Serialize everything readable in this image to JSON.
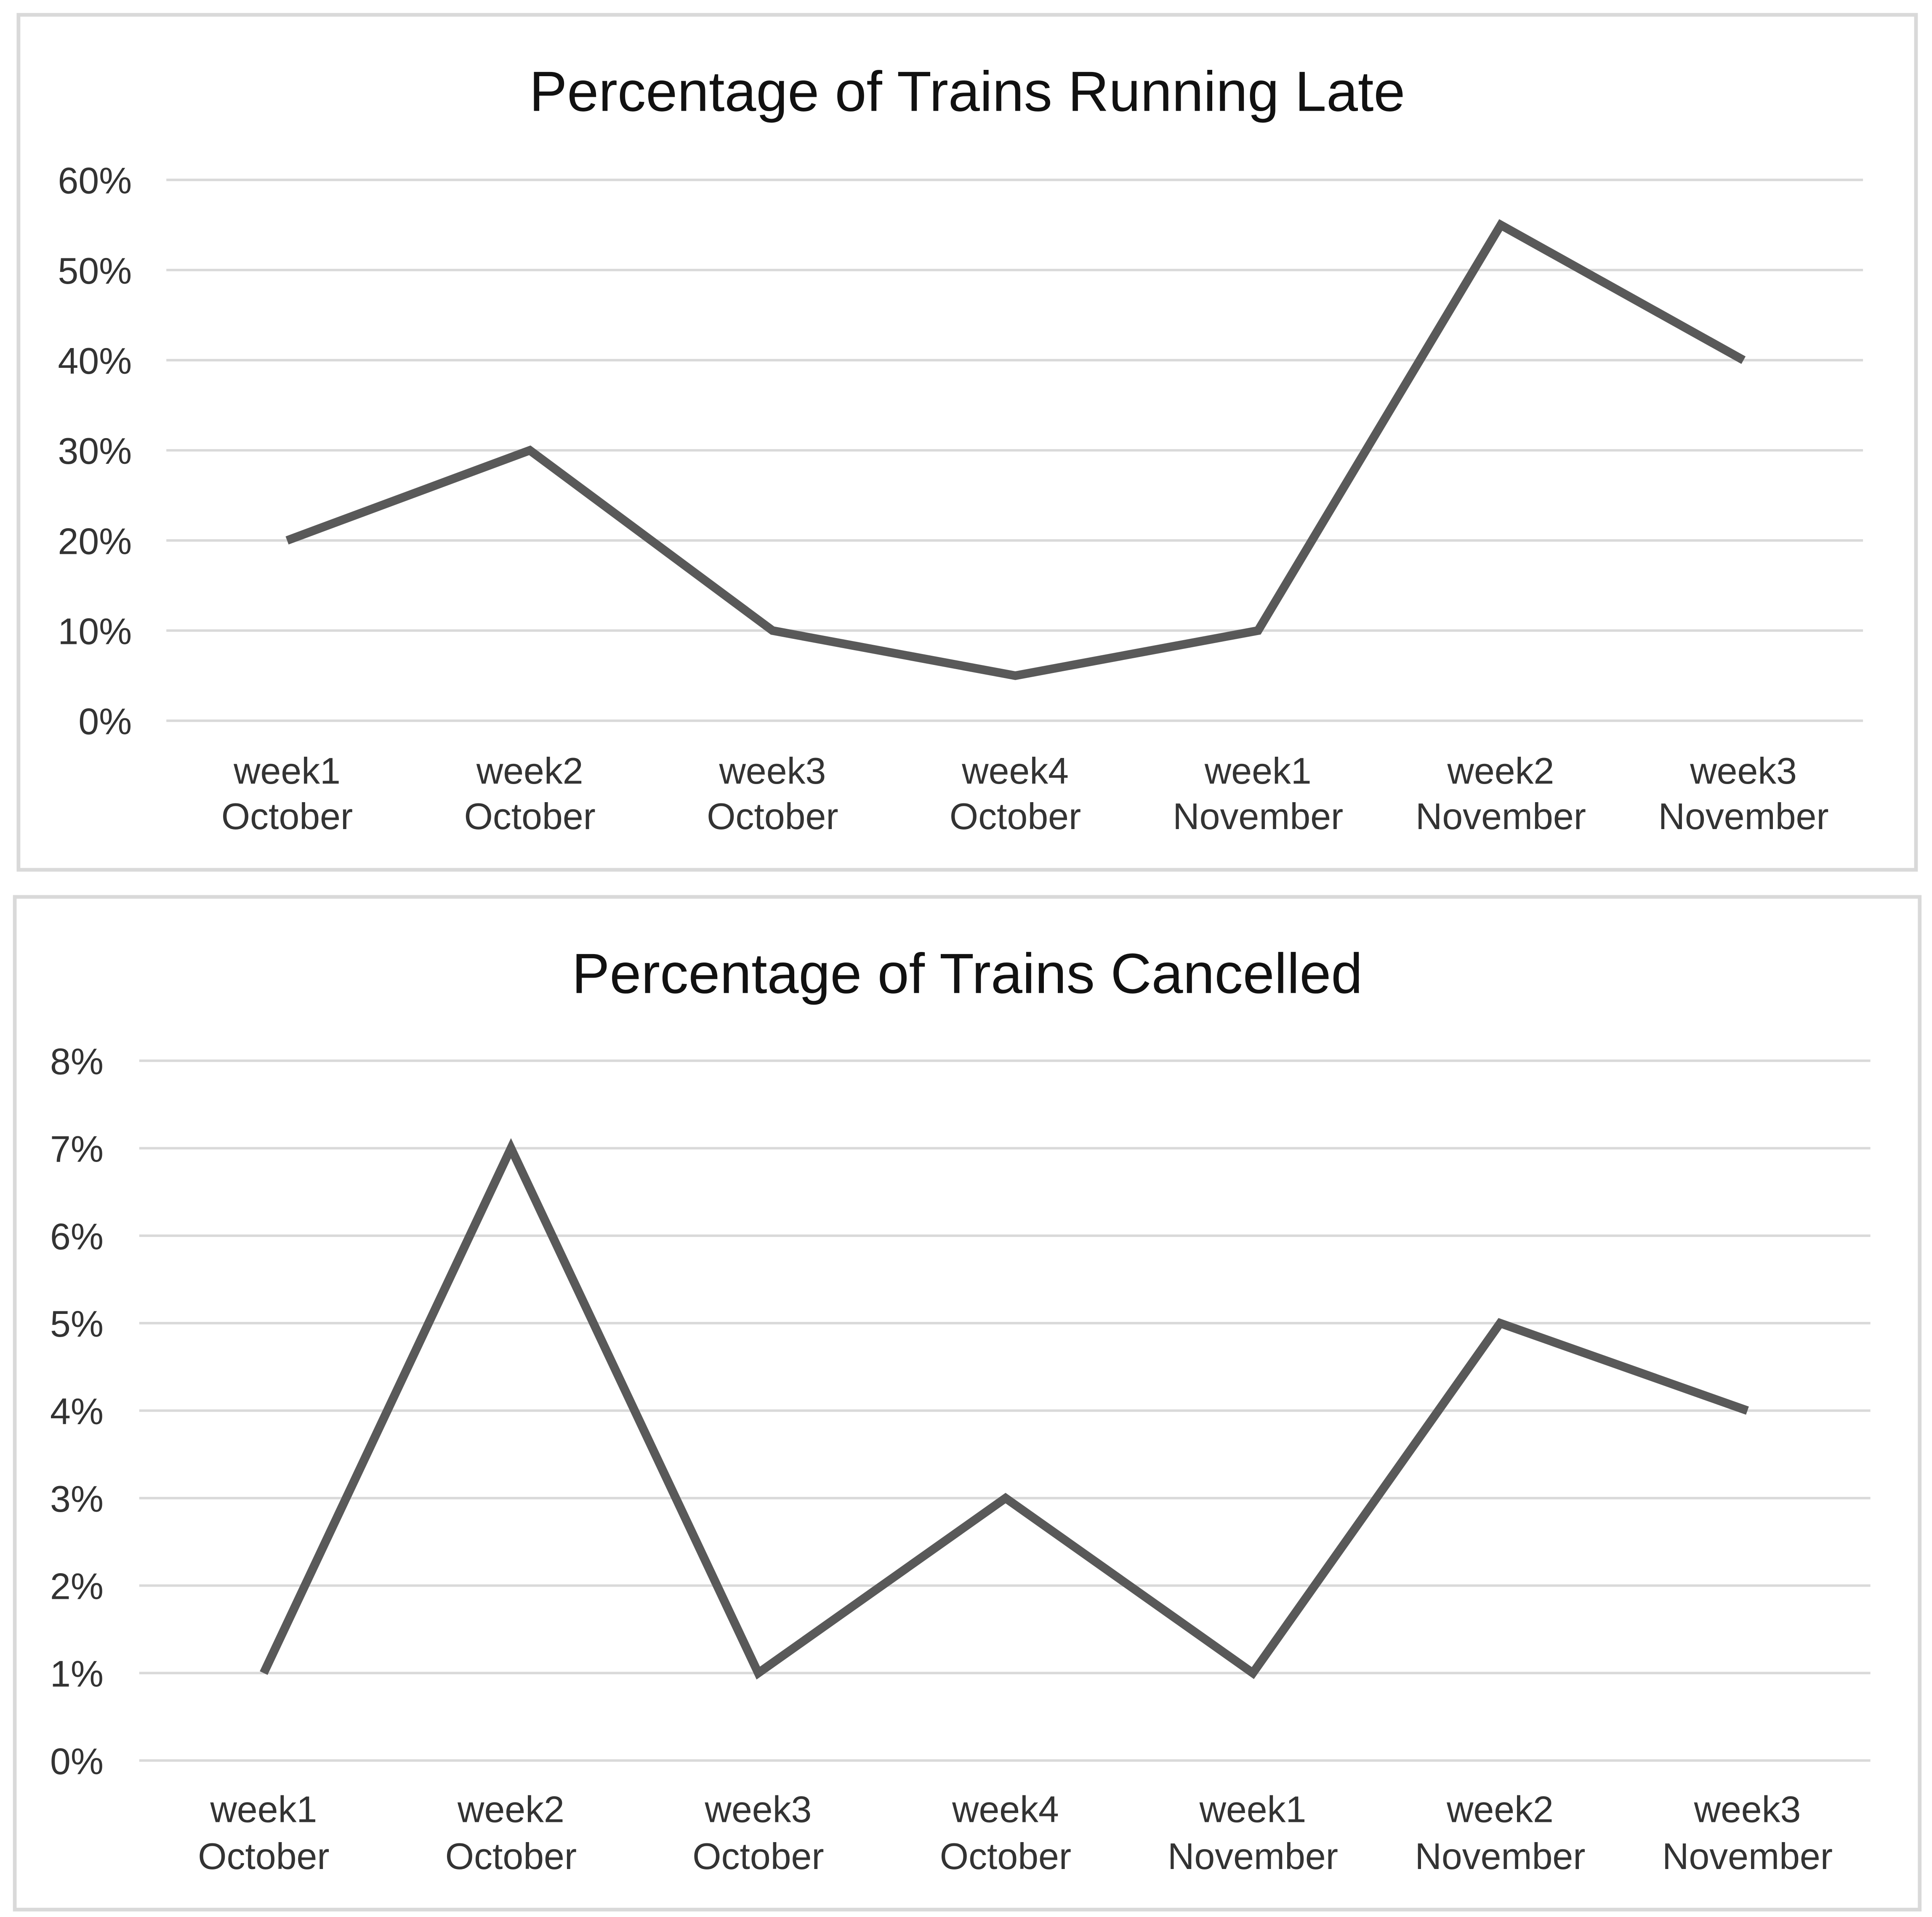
{
  "chart_data": [
    {
      "type": "line",
      "title": "Percentage of Trains Running Late",
      "xlabel": "",
      "ylabel": "",
      "categories": [
        [
          "week1",
          "October"
        ],
        [
          "week2",
          "October"
        ],
        [
          "week3",
          "October"
        ],
        [
          "week4",
          "October"
        ],
        [
          "week1",
          "November"
        ],
        [
          "week2",
          "November"
        ],
        [
          "week3",
          "November"
        ]
      ],
      "series": [
        {
          "name": "Late",
          "values": [
            20,
            30,
            10,
            5,
            10,
            55,
            40
          ]
        }
      ],
      "ylim": [
        0,
        60
      ],
      "yticks": [
        0,
        10,
        20,
        30,
        40,
        50,
        60
      ],
      "ytick_labels": [
        "0%",
        "10%",
        "20%",
        "30%",
        "40%",
        "50%",
        "60%"
      ],
      "grid": true,
      "legend": "none",
      "line_color": "#595959"
    },
    {
      "type": "line",
      "title": "Percentage of Trains Cancelled",
      "xlabel": "",
      "ylabel": "",
      "categories": [
        [
          "week1",
          "October"
        ],
        [
          "week2",
          "October"
        ],
        [
          "week3",
          "October"
        ],
        [
          "week4",
          "October"
        ],
        [
          "week1",
          "November"
        ],
        [
          "week2",
          "November"
        ],
        [
          "week3",
          "November"
        ]
      ],
      "series": [
        {
          "name": "Cancelled",
          "values": [
            1,
            7,
            1,
            3,
            1,
            5,
            4
          ]
        }
      ],
      "ylim": [
        0,
        8
      ],
      "yticks": [
        0,
        1,
        2,
        3,
        4,
        5,
        6,
        7,
        8
      ],
      "ytick_labels": [
        "0%",
        "1%",
        "2%",
        "3%",
        "4%",
        "5%",
        "6%",
        "7%",
        "8%"
      ],
      "grid": true,
      "legend": "none",
      "line_color": "#595959"
    }
  ]
}
